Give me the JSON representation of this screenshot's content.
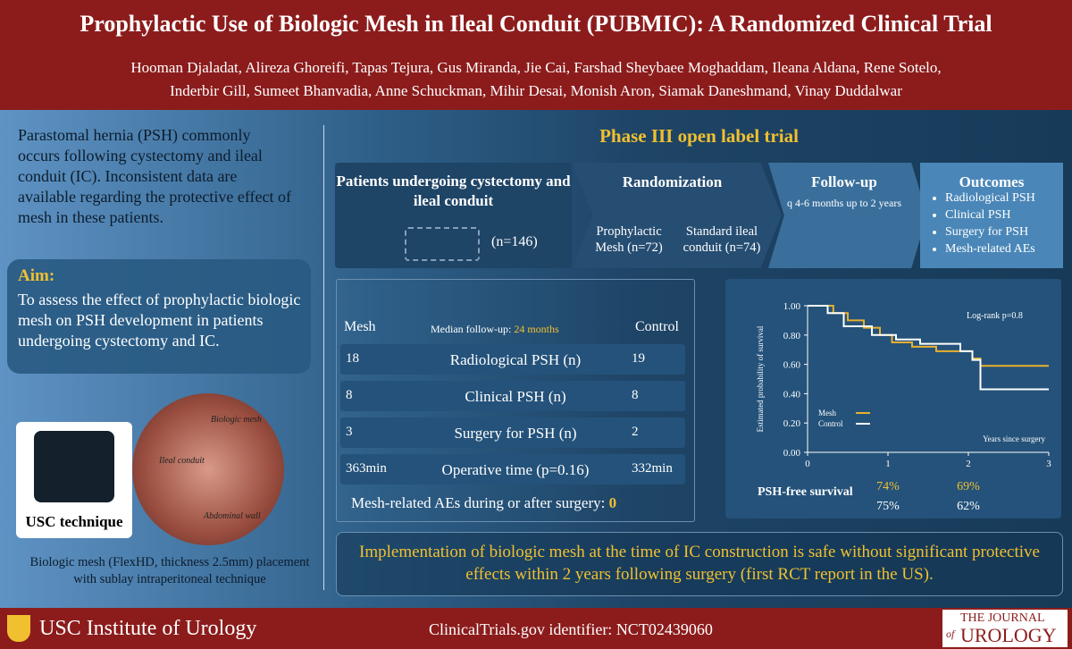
{
  "header": {
    "title": "Prophylactic Use of Biologic Mesh in Ileal Conduit (PUBMIC): A Randomized Clinical Trial",
    "authors": [
      "Hooman Djaladat, Alireza Ghoreifi, Tapas Tejura, Gus Miranda, Jie Cai, Farshad Sheybaee Moghaddam, Ileana Aldana, Rene Sotelo,",
      "Inderbir Gill, Sumeet Bhanvadia, Anne Schuckman, Mihir Desai, Monish Aron, Siamak Daneshmand, Vinay Duddalwar"
    ]
  },
  "left": {
    "intro": "Parastomal hernia (PSH) commonly occurs following cystectomy and ileal conduit (IC). Inconsistent data are available regarding the protective effect of mesh in these patients.",
    "aim_title": "Aim:",
    "aim_text": "To assess the effect of prophylactic biologic mesh on PSH development in patients undergoing cystectomy and IC.",
    "technique": "USC technique",
    "image_labels": [
      "Biologic mesh",
      "Ileal conduit",
      "Abdominal wall"
    ],
    "caption": "Biologic mesh (FlexHD, thickness 2.5mm) placement with sublay intraperitoneal technique"
  },
  "design": {
    "phase": "Phase III open label trial",
    "patients_title": "Patients undergoing cystectomy and ileal conduit",
    "patients_n": "(n=146)",
    "randomization_title": "Randomization",
    "arms": [
      "Prophylactic Mesh (n=72)",
      "Standard ileal conduit (n=74)"
    ],
    "followup_title": "Follow-up",
    "followup_text": "q 4-6 months up to 2 years",
    "outcomes_title": "Outcomes",
    "outcomes": [
      "Radiological PSH",
      "Clinical PSH",
      "Surgery for PSH",
      "Mesh-related AEs"
    ]
  },
  "results": {
    "mesh_label": "Mesh",
    "control_label": "Control",
    "median_label": "Median follow-up:",
    "median_value": "24 months",
    "rows": [
      [
        "18",
        "Radiological PSH (n)",
        "19"
      ],
      [
        "8",
        "Clinical PSH (n)",
        "8"
      ],
      [
        "3",
        "Surgery for PSH (n)",
        "2"
      ],
      [
        "363min",
        "Operative time (p=0.16)",
        "332min"
      ]
    ],
    "aes_text": "Mesh-related AEs during or after surgery:",
    "aes_value": "0"
  },
  "km": {
    "ylabel": "Estimated probability of survival",
    "xlabel": "Years since surgery",
    "annotation": "Log-rank p=0.8",
    "xlim": [
      0,
      3
    ],
    "ylim": [
      0,
      1
    ],
    "xticks": [
      0,
      1,
      2,
      3
    ],
    "yticks": [
      {
        "value": 0,
        "label": "0.00"
      },
      {
        "value": 0.2,
        "label": "0.20"
      },
      {
        "value": 0.4,
        "label": "0.40"
      },
      {
        "value": 0.6,
        "label": "0.60"
      },
      {
        "value": 0.8,
        "label": "0.80"
      },
      {
        "value": 1,
        "label": "1.00"
      }
    ],
    "series": [
      {
        "name": "Mesh",
        "color": "#e8b030",
        "x": [
          0,
          0.32,
          0.32,
          0.5,
          0.5,
          0.7,
          0.7,
          0.9,
          0.9,
          1.05,
          1.05,
          1.3,
          1.3,
          1.6,
          1.6,
          2.05,
          2.05,
          2.15,
          2.15,
          3
        ],
        "values": [
          1,
          1,
          0.95,
          0.95,
          0.9,
          0.9,
          0.85,
          0.85,
          0.8,
          0.8,
          0.75,
          0.75,
          0.72,
          0.72,
          0.69,
          0.69,
          0.64,
          0.64,
          0.59,
          0.59
        ]
      },
      {
        "name": "Control",
        "color": "#ffffff",
        "x": [
          0,
          0.25,
          0.25,
          0.45,
          0.45,
          0.8,
          0.8,
          1.1,
          1.1,
          1.4,
          1.4,
          1.9,
          1.9,
          2.05,
          2.05,
          2.15,
          2.15,
          3
        ],
        "values": [
          1,
          1,
          0.95,
          0.95,
          0.86,
          0.86,
          0.8,
          0.8,
          0.77,
          0.77,
          0.74,
          0.74,
          0.69,
          0.69,
          0.63,
          0.63,
          0.43,
          0.43
        ]
      }
    ],
    "psh_label": "PSH-free survival",
    "psh_mesh": [
      "74%",
      "69%"
    ],
    "psh_control": [
      "75%",
      "62%"
    ]
  },
  "conclusion": "Implementation of biologic mesh at the time of IC construction is safe without significant protective effects within 2 years following surgery (first RCT report in the US).",
  "footer": {
    "institute": "USC Institute of Urology",
    "registry": "ClinicalTrials.gov identifier: NCT02439060",
    "journal_top": "THE JOURNAL",
    "journal_of": "of",
    "journal_bottom": "UROLOGY"
  }
}
